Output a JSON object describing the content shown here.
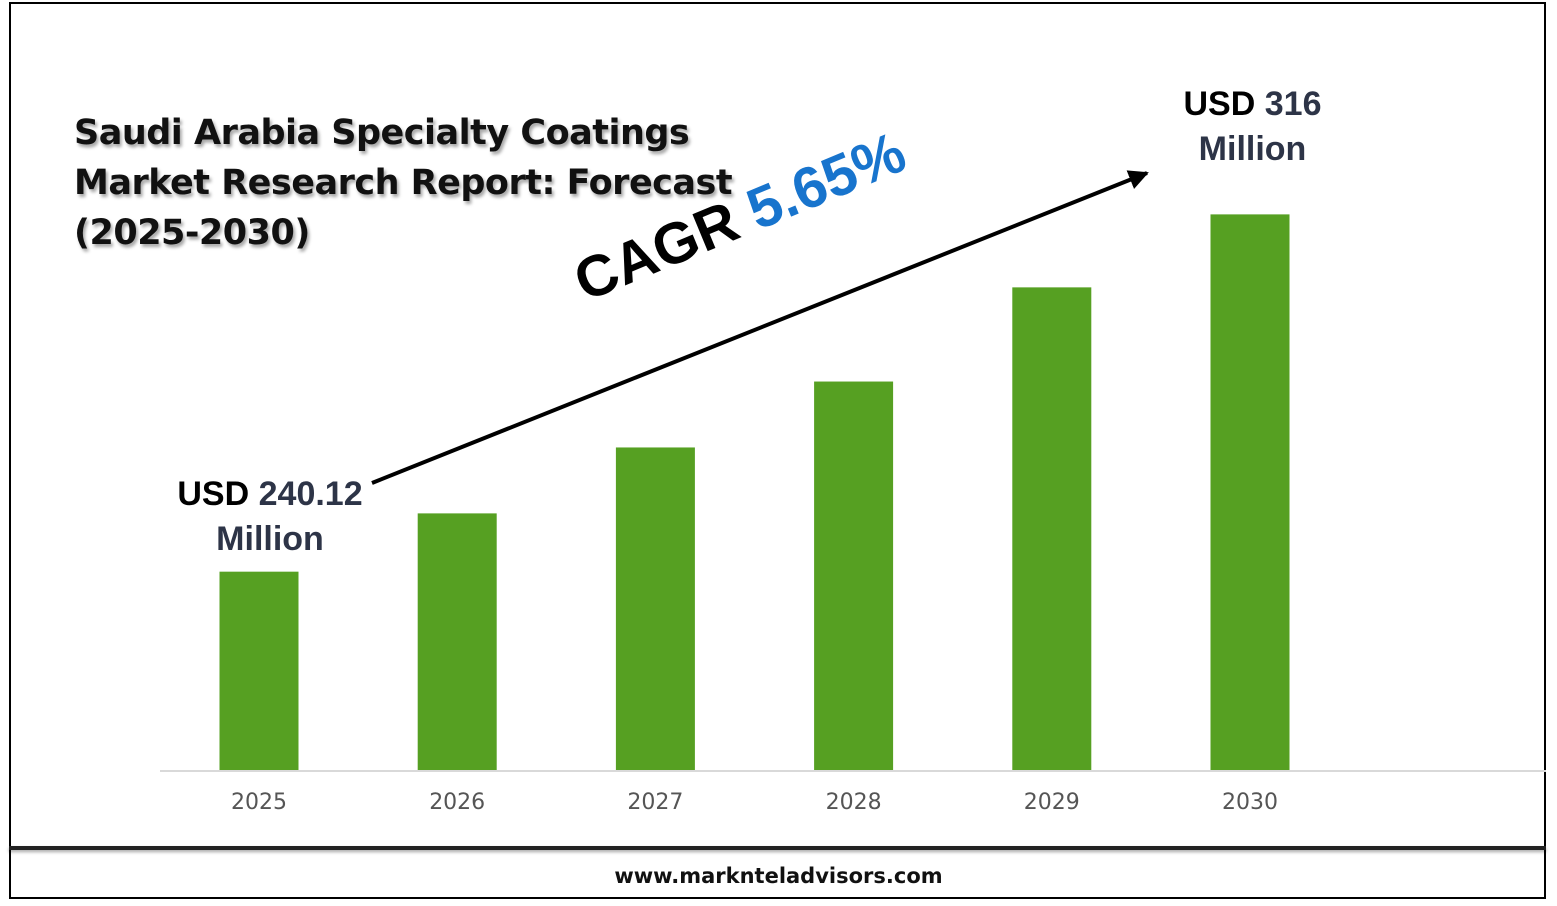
{
  "chart_data": {
    "type": "bar",
    "title": "Saudi Arabia Specialty Coatings Market Research Report: Forecast (2025-2030)",
    "categories": [
      "2025",
      "2026",
      "2027",
      "2028",
      "2029",
      "2030"
    ],
    "values": [
      240.12,
      252.5,
      266.5,
      280.5,
      300.5,
      316
    ],
    "ylim": [
      198,
      325
    ],
    "grid": false,
    "bar_color": "#56a022",
    "annotations": {
      "start": {
        "prefix": "USD",
        "value": "240.12",
        "unit": "Million"
      },
      "end": {
        "prefix": "USD",
        "value": "316",
        "unit": "Million"
      },
      "cagr_label": "CAGR",
      "cagr_value": "5.65%",
      "cagr_color": "#1874cd"
    }
  },
  "footer": {
    "website": "www.marknteladvisors.com"
  }
}
